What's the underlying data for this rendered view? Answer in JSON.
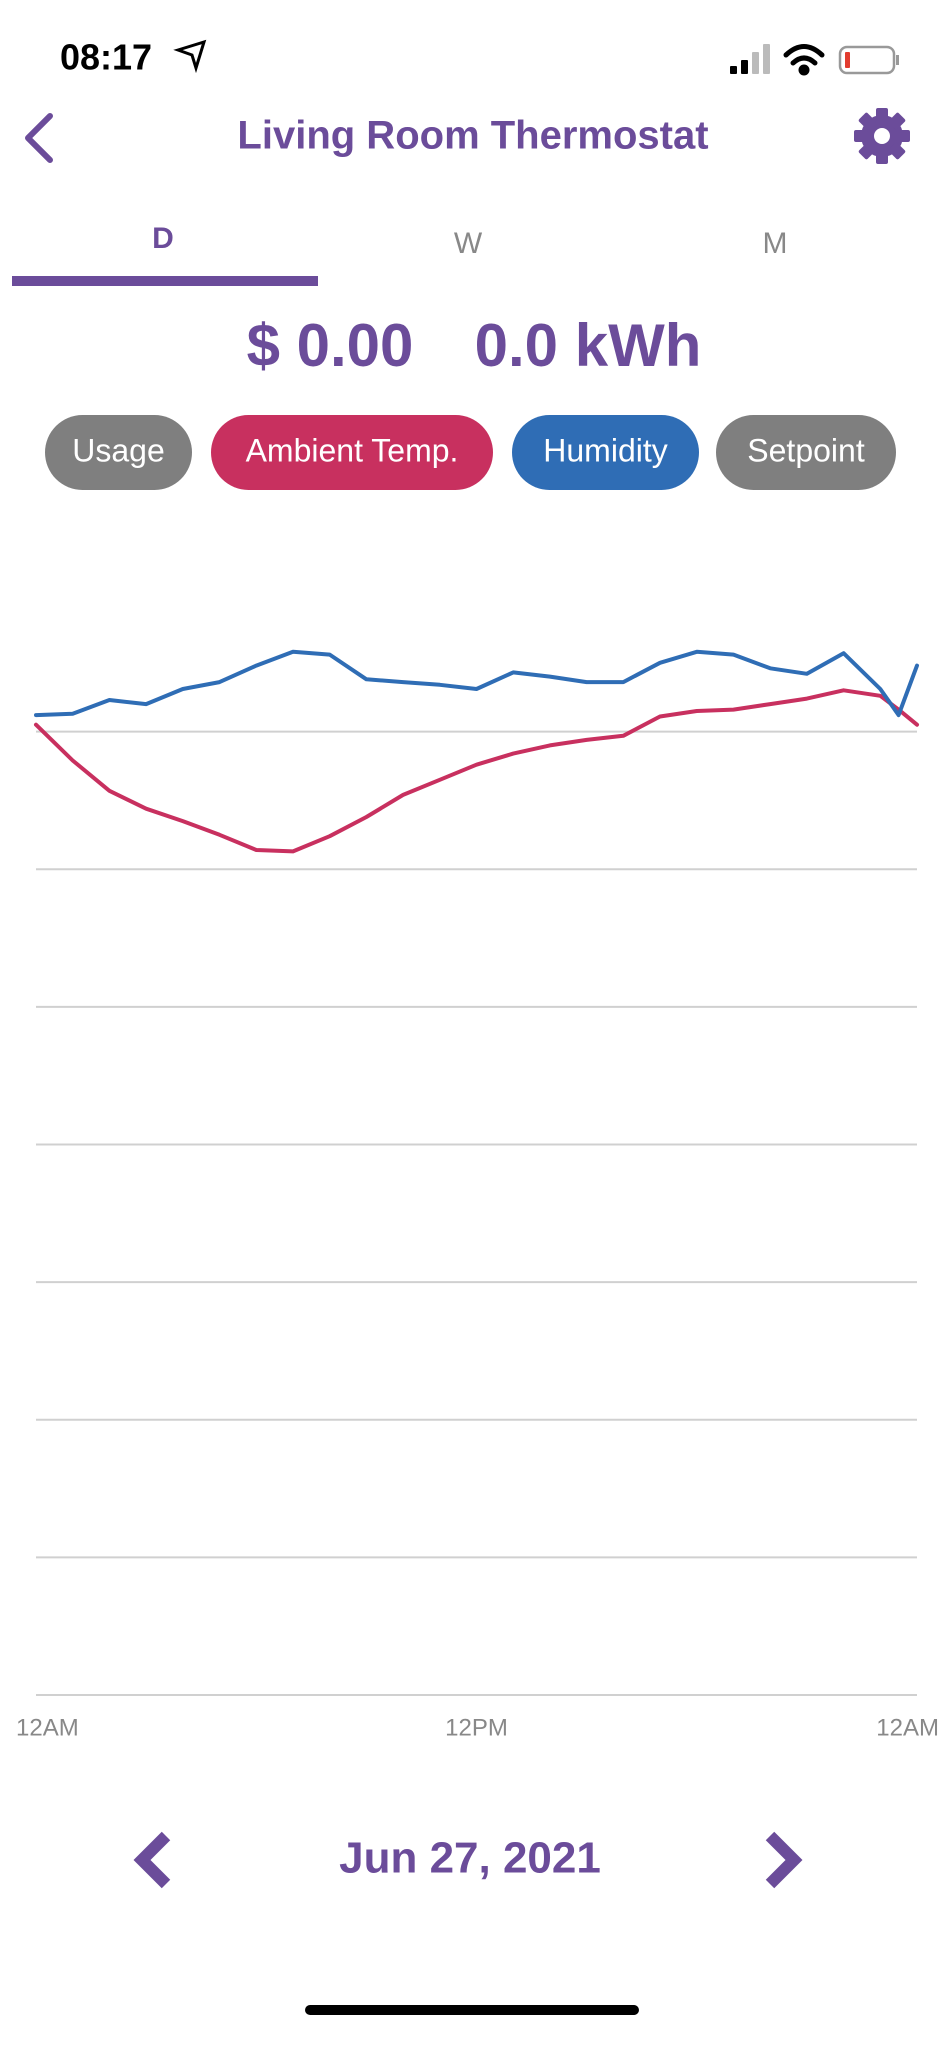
{
  "status_bar": {
    "time": "08:17"
  },
  "header": {
    "title": "Living Room Thermostat"
  },
  "tabs": [
    "D",
    "W",
    "M"
  ],
  "summary": {
    "cost": "$ 0.00",
    "energy": "0.0 kWh"
  },
  "filters": [
    {
      "label": "Usage",
      "color": "#7f7f7f"
    },
    {
      "label": "Ambient Temp.",
      "color": "#c8305f"
    },
    {
      "label": "Humidity",
      "color": "#2f6db5"
    },
    {
      "label": "Setpoint",
      "color": "#7f7f7f"
    }
  ],
  "chart_data": {
    "type": "line",
    "x": [
      0,
      1,
      2,
      3,
      4,
      5,
      6,
      7,
      8,
      9,
      10,
      11,
      12,
      13,
      14,
      15,
      16,
      17,
      18,
      19,
      20,
      21,
      22,
      23,
      23.5,
      24
    ],
    "xlim": [
      0,
      24
    ],
    "xticks": [
      {
        "value": 0,
        "label": "12AM"
      },
      {
        "value": 12,
        "label": "12PM"
      },
      {
        "value": 24,
        "label": "12AM"
      }
    ],
    "ylim": [
      0,
      8
    ],
    "yticks": [
      0,
      1,
      2,
      3,
      4,
      5,
      6,
      7
    ],
    "grid": true,
    "series": [
      {
        "color": "#c8305f",
        "values": [
          7.05,
          6.79,
          6.57,
          6.44,
          6.35,
          6.25,
          6.14,
          6.13,
          6.24,
          6.38,
          6.54,
          6.65,
          6.76,
          6.84,
          6.9,
          6.94,
          6.97,
          7.11,
          7.15,
          7.16,
          7.2,
          7.24,
          7.3,
          7.26,
          7.16,
          7.05
        ]
      },
      {
        "color": "#2f6db5",
        "values": [
          7.12,
          7.13,
          7.23,
          7.2,
          7.31,
          7.36,
          7.48,
          7.58,
          7.56,
          7.38,
          7.36,
          7.34,
          7.31,
          7.43,
          7.4,
          7.36,
          7.36,
          7.5,
          7.58,
          7.56,
          7.46,
          7.42,
          7.57,
          7.31,
          7.12,
          7.48
        ]
      }
    ]
  },
  "date_nav": {
    "date": "Jun 27, 2021"
  }
}
